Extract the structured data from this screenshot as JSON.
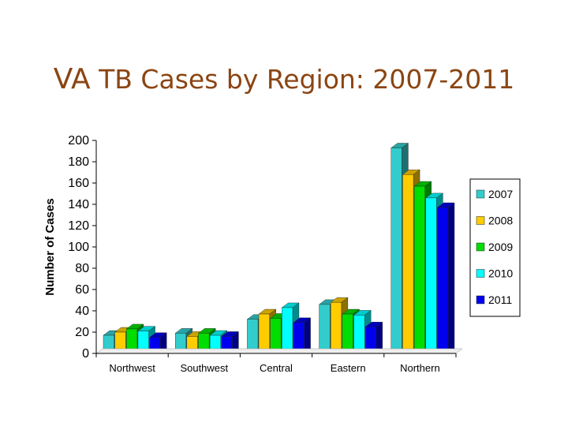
{
  "title": {
    "prefix": "VA",
    "rest": " TB Cases by Region: 2007-2011"
  },
  "colors": {
    "title": "#8B4513"
  },
  "chart_data": {
    "type": "bar",
    "title": "VA TB Cases by Region: 2007-2011",
    "xlabel": "",
    "ylabel": "Number of Cases",
    "ylim": [
      0,
      200
    ],
    "yticks": [
      "0",
      "20",
      "40",
      "60",
      "80",
      "100",
      "120",
      "140",
      "160",
      "180",
      "200"
    ],
    "categories": [
      "Northwest",
      "Southwest",
      "Central",
      "Eastern",
      "Northern"
    ],
    "series": [
      {
        "name": "2007",
        "color": "#33CCCC",
        "values": [
          17,
          19,
          32,
          46,
          193
        ]
      },
      {
        "name": "2008",
        "color": "#FFCC00",
        "values": [
          20,
          16,
          37,
          48,
          168
        ]
      },
      {
        "name": "2009",
        "color": "#00DD00",
        "values": [
          23,
          19,
          33,
          37,
          157
        ]
      },
      {
        "name": "2010",
        "color": "#00FFFF",
        "values": [
          21,
          17,
          43,
          36,
          146
        ]
      },
      {
        "name": "2011",
        "color": "#0000EE",
        "values": [
          15,
          16,
          29,
          25,
          137
        ]
      }
    ],
    "legend_position": "right",
    "grid": false,
    "style": "3d-clustered-bar"
  }
}
